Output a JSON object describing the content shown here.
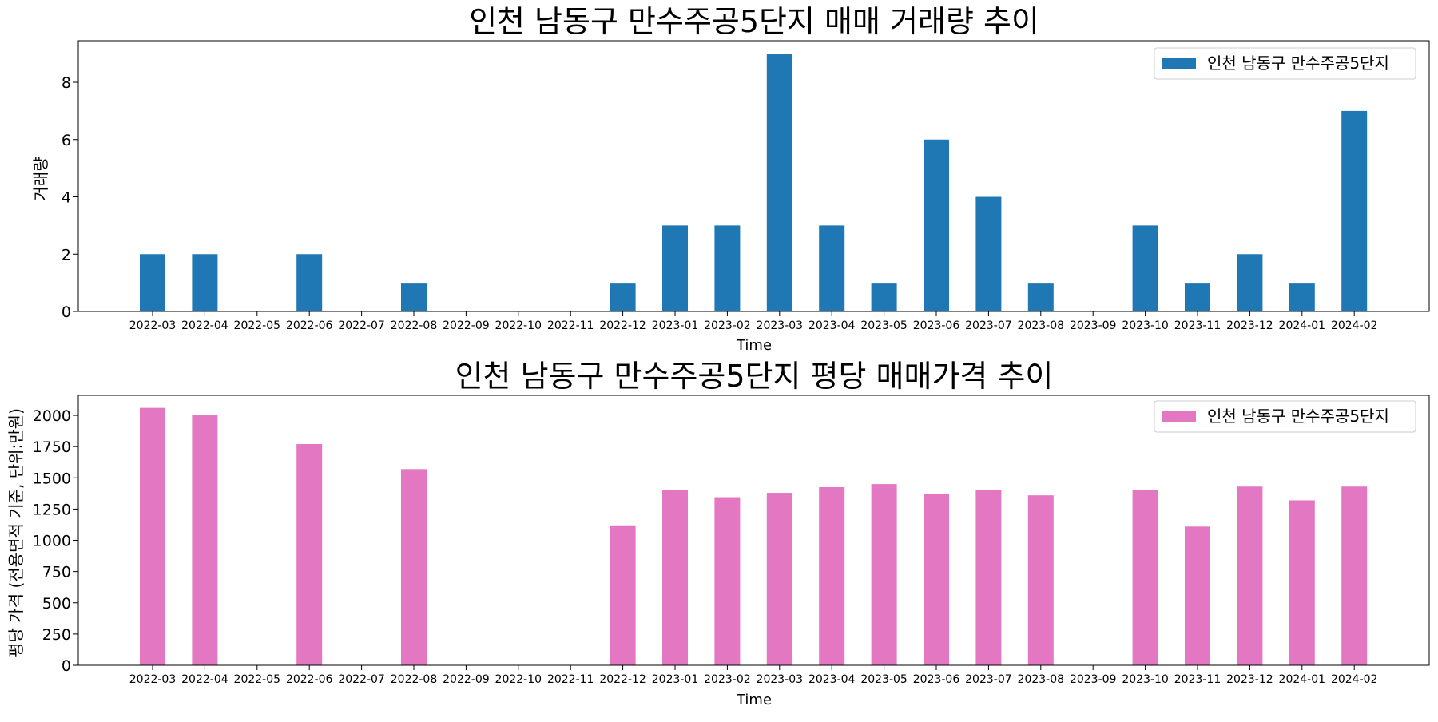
{
  "chart_data": [
    {
      "type": "bar",
      "title": "인천 남동구 만수주공5단지 매매 거래량 추이",
      "xlabel": "Time",
      "ylabel": "거래량",
      "ylim": [
        0,
        9.45
      ],
      "yticks": [
        0,
        2,
        4,
        6,
        8
      ],
      "color": "#1f77b4",
      "legend": {
        "location": "top-right",
        "entries": [
          "인천 남동구 만수주공5단지"
        ]
      },
      "categories": [
        "2022-03",
        "2022-04",
        "2022-05",
        "2022-06",
        "2022-07",
        "2022-08",
        "2022-09",
        "2022-10",
        "2022-11",
        "2022-12",
        "2023-01",
        "2023-02",
        "2023-03",
        "2023-04",
        "2023-05",
        "2023-06",
        "2023-07",
        "2023-08",
        "2023-09",
        "2023-10",
        "2023-11",
        "2023-12",
        "2024-01",
        "2024-02"
      ],
      "series": [
        {
          "name": "인천 남동구 만수주공5단지",
          "values": [
            2,
            2,
            0,
            2,
            0,
            1,
            0,
            0,
            0,
            1,
            3,
            3,
            9,
            3,
            1,
            6,
            4,
            1,
            0,
            3,
            1,
            2,
            1,
            7
          ]
        }
      ]
    },
    {
      "type": "bar",
      "title": "인천 남동구 만수주공5단지 평당 매매가격 추이",
      "xlabel": "Time",
      "ylabel": "평당 가격 (전용면적 기준, 단위:만원)",
      "ylim": [
        0,
        2160
      ],
      "yticks": [
        0,
        250,
        500,
        750,
        1000,
        1250,
        1500,
        1750,
        2000
      ],
      "color": "#e377c2",
      "legend": {
        "location": "top-right",
        "entries": [
          "인천 남동구 만수주공5단지"
        ]
      },
      "categories": [
        "2022-03",
        "2022-04",
        "2022-05",
        "2022-06",
        "2022-07",
        "2022-08",
        "2022-09",
        "2022-10",
        "2022-11",
        "2022-12",
        "2023-01",
        "2023-02",
        "2023-03",
        "2023-04",
        "2023-05",
        "2023-06",
        "2023-07",
        "2023-08",
        "2023-09",
        "2023-10",
        "2023-11",
        "2023-12",
        "2024-01",
        "2024-02"
      ],
      "series": [
        {
          "name": "인천 남동구 만수주공5단지",
          "values": [
            2060,
            2000,
            0,
            1770,
            0,
            1570,
            0,
            0,
            0,
            1120,
            1400,
            1345,
            1380,
            1425,
            1450,
            1370,
            1400,
            1360,
            0,
            1400,
            1110,
            1430,
            1320,
            1430
          ]
        }
      ]
    }
  ]
}
